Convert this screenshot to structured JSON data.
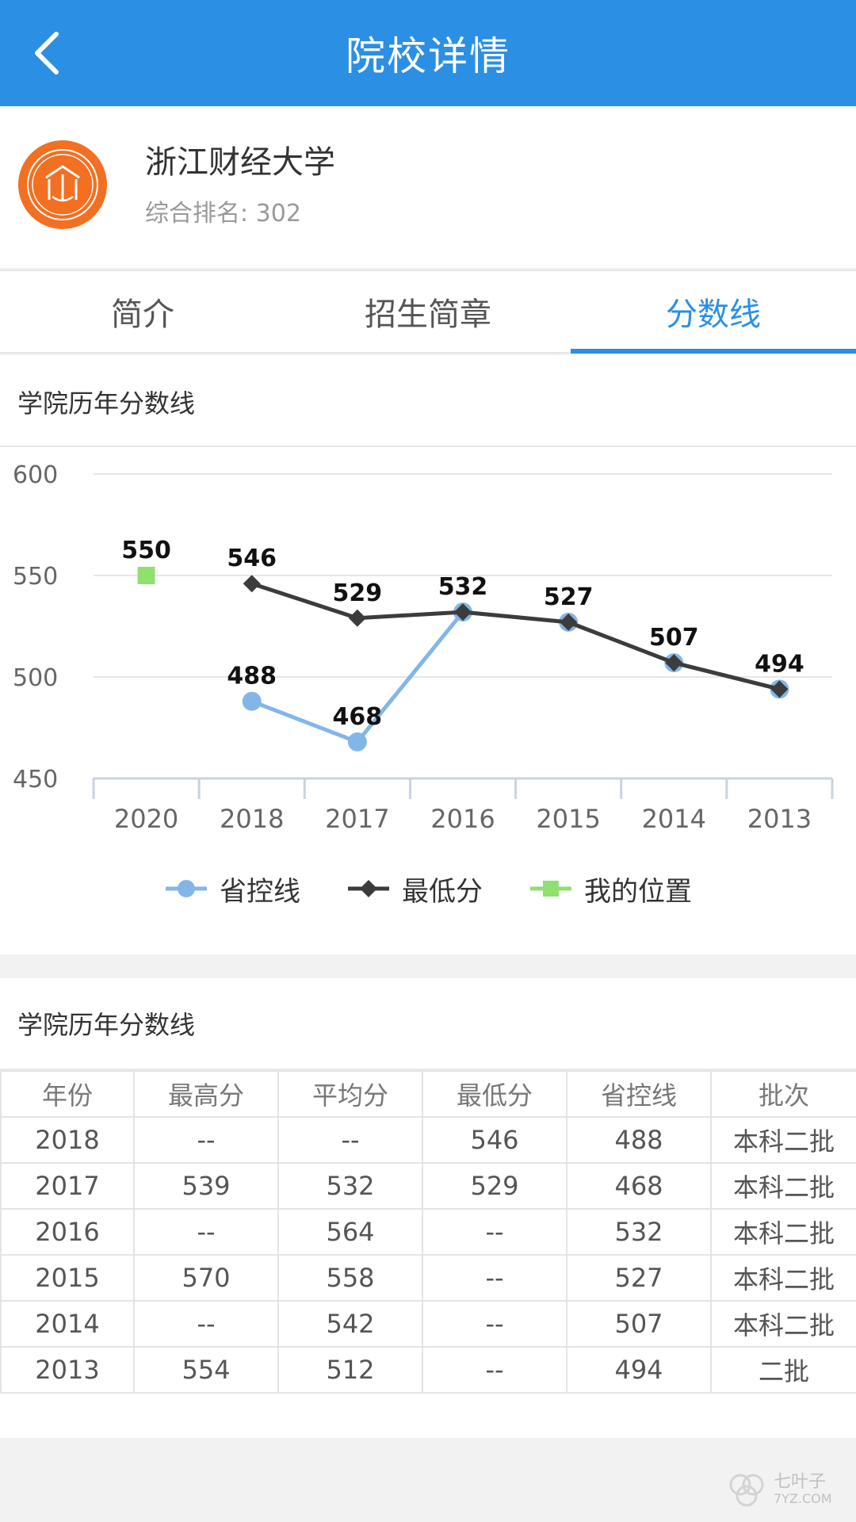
{
  "appbar": {
    "title": "院校详情",
    "back_icon": "chevron-left-icon",
    "bg_color": "#2b8fe3"
  },
  "school": {
    "name": "浙江财经大学",
    "ranking": "综合排名: 302",
    "logo_color": "#f36f21"
  },
  "tabs": [
    {
      "label": "简介",
      "active": false
    },
    {
      "label": "招生简章",
      "active": false
    },
    {
      "label": "分数线",
      "active": true
    }
  ],
  "chart_section": {
    "title": "学院历年分数线"
  },
  "chart_data": {
    "type": "line",
    "categories": [
      "2020",
      "2018",
      "2017",
      "2016",
      "2015",
      "2014",
      "2013"
    ],
    "ylim": [
      450,
      600
    ],
    "yticks": [
      450,
      500,
      550,
      600
    ],
    "grid": true,
    "legend_position": "bottom",
    "series": [
      {
        "name": "省控线",
        "color": "#82b6e8",
        "marker": "circle",
        "values": [
          null,
          488,
          468,
          532,
          527,
          507,
          494
        ],
        "show_labels": [
          false,
          true,
          true,
          false,
          false,
          false,
          false
        ]
      },
      {
        "name": "最低分",
        "color": "#3c3c3c",
        "marker": "diamond",
        "values": [
          null,
          546,
          529,
          532,
          527,
          507,
          494
        ],
        "show_labels": [
          false,
          true,
          true,
          true,
          true,
          true,
          true
        ]
      },
      {
        "name": "我的位置",
        "color": "#8fe06f",
        "marker": "square",
        "values": [
          550,
          null,
          null,
          null,
          null,
          null,
          null
        ],
        "show_labels": [
          true,
          false,
          false,
          false,
          false,
          false,
          false
        ]
      }
    ]
  },
  "table_section": {
    "title": "学院历年分数线",
    "headers": [
      "年份",
      "最高分",
      "平均分",
      "最低分",
      "省控线",
      "批次"
    ],
    "rows": [
      [
        "2018",
        "--",
        "--",
        "546",
        "488",
        "本科二批"
      ],
      [
        "2017",
        "539",
        "532",
        "529",
        "468",
        "本科二批"
      ],
      [
        "2016",
        "--",
        "564",
        "--",
        "532",
        "本科二批"
      ],
      [
        "2015",
        "570",
        "558",
        "--",
        "527",
        "本科二批"
      ],
      [
        "2014",
        "--",
        "542",
        "--",
        "507",
        "本科二批"
      ],
      [
        "2013",
        "554",
        "512",
        "--",
        "494",
        "二批"
      ]
    ]
  },
  "watermark": {
    "line1": "七叶子",
    "line2": "7YZ.COM"
  }
}
